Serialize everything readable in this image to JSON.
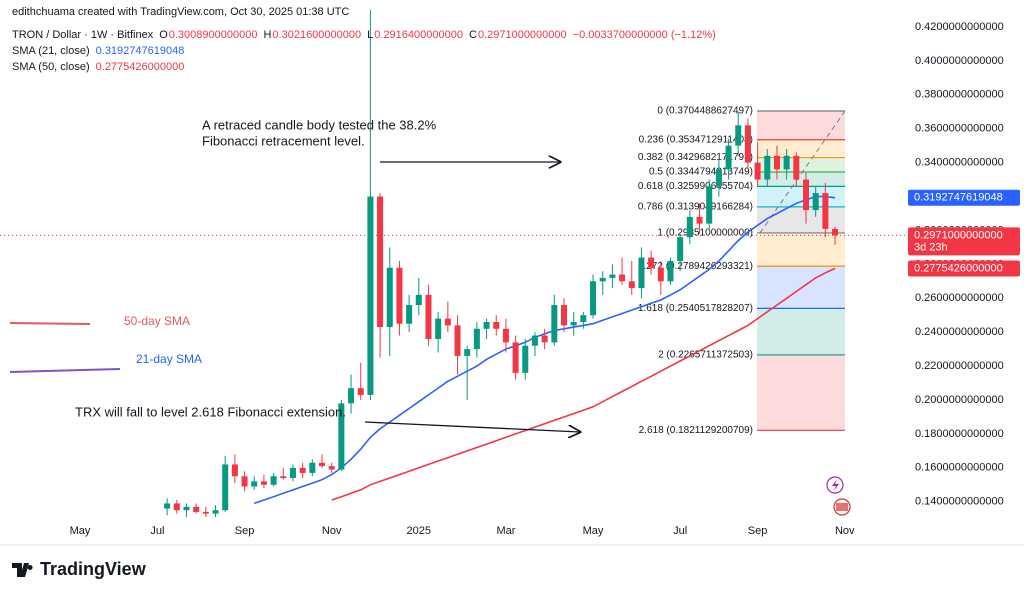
{
  "chart_data": {
    "type": "candlestick",
    "subtitle": "edithchuama created with TradingView.com, Oct 30, 2025 01:38 UTC",
    "title": "TRON / Dollar · 1W · Bitfinex",
    "ohlc_labels": [
      {
        "key": "O",
        "text": "0.3008900000000"
      },
      {
        "key": "H",
        "text": "0.3021600000000"
      },
      {
        "key": "L",
        "text": "0.2916400000000"
      },
      {
        "key": "C",
        "text": "0.2971000000000"
      }
    ],
    "change": "−0.0033700000000 (−1.12%)",
    "last_price": "0.2971000000000",
    "countdown": "3d 23h",
    "brand": "TradingView",
    "up_color": "#089981",
    "down_color": "#f23645",
    "grid": false,
    "categories": [
      "May",
      null,
      null,
      null,
      null,
      null,
      null,
      null,
      "Jul",
      null,
      null,
      null,
      null,
      null,
      null,
      null,
      null,
      "Sep",
      null,
      null,
      null,
      null,
      null,
      null,
      null,
      null,
      "Nov",
      null,
      null,
      null,
      null,
      null,
      null,
      null,
      null,
      "2025",
      null,
      null,
      null,
      null,
      null,
      null,
      null,
      null,
      "Mar",
      null,
      null,
      null,
      null,
      null,
      null,
      null,
      null,
      "May",
      null,
      null,
      null,
      null,
      null,
      null,
      null,
      null,
      "Jul",
      null,
      null,
      null,
      null,
      null,
      null,
      null,
      "Sep",
      null,
      null,
      null,
      null,
      null,
      null,
      null,
      null,
      "Nov"
    ],
    "open": [
      null,
      null,
      null,
      null,
      null,
      null,
      null,
      null,
      null,
      0.136,
      0.139,
      0.135,
      0.137,
      0.134,
      0.133,
      0.135,
      0.162,
      0.155,
      0.149,
      0.152,
      0.15,
      0.155,
      0.154,
      0.16,
      0.157,
      0.163,
      0.161,
      0.159,
      0.198,
      0.207,
      0.203,
      0.32,
      0.243,
      0.278,
      0.245,
      0.256,
      0.262,
      0.236,
      0.248,
      0.244,
      0.226,
      0.23,
      0.242,
      0.246,
      0.242,
      0.234,
      0.216,
      0.232,
      0.238,
      0.234,
      0.256,
      0.244,
      0.246,
      0.25,
      0.27,
      0.272,
      0.274,
      0.27,
      0.266,
      0.284,
      0.278,
      0.27,
      0.282,
      0.296,
      0.308,
      0.304,
      0.326,
      0.336,
      0.35,
      0.362,
      0.34,
      0.33,
      0.344,
      0.336,
      0.344,
      0.33,
      0.312,
      0.322,
      0.30089,
      null
    ],
    "high": [
      null,
      null,
      null,
      null,
      null,
      null,
      null,
      null,
      null,
      0.142,
      0.141,
      0.139,
      0.139,
      0.137,
      0.138,
      0.167,
      0.168,
      0.158,
      0.155,
      0.156,
      0.157,
      0.16,
      0.162,
      0.163,
      0.165,
      0.168,
      0.163,
      0.2,
      0.215,
      0.222,
      0.44,
      0.322,
      0.29,
      0.282,
      0.262,
      0.272,
      0.268,
      0.252,
      0.258,
      0.25,
      0.232,
      0.246,
      0.248,
      0.25,
      0.248,
      0.238,
      0.236,
      0.24,
      0.242,
      0.262,
      0.26,
      0.252,
      0.252,
      0.274,
      0.276,
      0.28,
      0.284,
      0.282,
      0.29,
      0.288,
      0.282,
      0.284,
      0.298,
      0.312,
      0.316,
      0.33,
      0.342,
      0.354,
      0.37,
      0.366,
      0.352,
      0.348,
      0.35,
      0.348,
      0.346,
      0.334,
      0.326,
      0.328,
      0.30216,
      null
    ],
    "low": [
      null,
      null,
      null,
      null,
      null,
      null,
      null,
      null,
      null,
      0.132,
      0.133,
      0.13,
      0.133,
      0.131,
      0.129,
      0.134,
      0.151,
      0.146,
      0.147,
      0.148,
      0.149,
      0.153,
      0.152,
      0.154,
      0.155,
      0.16,
      0.157,
      0.158,
      0.192,
      0.2,
      0.2,
      0.225,
      0.226,
      0.238,
      0.24,
      0.25,
      0.232,
      0.228,
      0.24,
      0.215,
      0.2,
      0.225,
      0.236,
      0.238,
      0.228,
      0.212,
      0.212,
      0.226,
      0.23,
      0.232,
      0.24,
      0.238,
      0.242,
      0.248,
      0.262,
      0.266,
      0.268,
      0.262,
      0.26,
      0.274,
      0.262,
      0.268,
      0.276,
      0.292,
      0.298,
      0.3,
      0.32,
      0.33,
      0.344,
      0.336,
      0.326,
      0.326,
      0.33,
      0.33,
      0.326,
      0.304,
      0.308,
      0.296,
      0.29164,
      null
    ],
    "close": [
      null,
      null,
      null,
      null,
      null,
      null,
      null,
      null,
      null,
      0.139,
      0.135,
      0.137,
      0.134,
      0.133,
      0.135,
      0.162,
      0.155,
      0.149,
      0.152,
      0.15,
      0.155,
      0.154,
      0.16,
      0.157,
      0.163,
      0.161,
      0.159,
      0.198,
      0.207,
      0.203,
      0.32,
      0.243,
      0.278,
      0.245,
      0.256,
      0.262,
      0.236,
      0.248,
      0.244,
      0.226,
      0.23,
      0.242,
      0.246,
      0.242,
      0.234,
      0.216,
      0.232,
      0.238,
      0.234,
      0.256,
      0.244,
      0.246,
      0.25,
      0.27,
      0.272,
      0.274,
      0.27,
      0.266,
      0.284,
      0.278,
      0.27,
      0.282,
      0.296,
      0.308,
      0.304,
      0.326,
      0.336,
      0.35,
      0.362,
      0.34,
      0.33,
      0.344,
      0.336,
      0.344,
      0.33,
      0.312,
      0.322,
      0.30089,
      0.2971,
      null
    ],
    "series": [
      {
        "name": "SMA (21, close)",
        "color": "#2962ff",
        "legend_value": "0.3192747619048",
        "values": [
          null,
          null,
          null,
          null,
          null,
          null,
          null,
          null,
          null,
          null,
          null,
          null,
          null,
          null,
          null,
          null,
          null,
          null,
          0.139,
          0.141,
          0.143,
          0.145,
          0.147,
          0.149,
          0.151,
          0.153,
          0.156,
          0.16,
          0.165,
          0.171,
          0.178,
          0.183,
          0.187,
          0.191,
          0.195,
          0.199,
          0.203,
          0.207,
          0.211,
          0.214,
          0.217,
          0.22,
          0.224,
          0.227,
          0.23,
          0.232,
          0.234,
          0.237,
          0.239,
          0.241,
          0.242,
          0.243,
          0.244,
          0.245,
          0.247,
          0.249,
          0.251,
          0.253,
          0.255,
          0.257,
          0.259,
          0.262,
          0.265,
          0.269,
          0.273,
          0.277,
          0.282,
          0.288,
          0.294,
          0.299,
          0.303,
          0.307,
          0.31,
          0.313,
          0.316,
          0.318,
          0.32,
          0.32,
          0.3192747619048,
          null
        ]
      },
      {
        "name": "SMA (50, close)",
        "color": "#f23645",
        "legend_value": "0.2775426000000",
        "values": [
          null,
          null,
          null,
          null,
          null,
          null,
          null,
          null,
          null,
          null,
          null,
          null,
          null,
          null,
          null,
          null,
          null,
          null,
          null,
          null,
          null,
          null,
          null,
          null,
          null,
          null,
          0.141,
          0.143,
          0.145,
          0.147,
          0.15,
          0.152,
          0.154,
          0.156,
          0.158,
          0.16,
          0.162,
          0.164,
          0.166,
          0.168,
          0.17,
          0.172,
          0.174,
          0.176,
          0.178,
          0.18,
          0.182,
          0.184,
          0.186,
          0.188,
          0.19,
          0.192,
          0.194,
          0.196,
          0.199,
          0.202,
          0.205,
          0.208,
          0.211,
          0.214,
          0.217,
          0.22,
          0.223,
          0.226,
          0.229,
          0.232,
          0.235,
          0.238,
          0.241,
          0.244,
          0.248,
          0.252,
          0.256,
          0.26,
          0.264,
          0.268,
          0.272,
          0.275,
          0.2775426,
          null
        ]
      }
    ],
    "ylim": [
      0.131,
      0.43
    ],
    "yticks": [
      {
        "value": 0.14,
        "label": "0.1400000000000"
      },
      {
        "value": 0.16,
        "label": "0.1600000000000"
      },
      {
        "value": 0.18,
        "label": "0.1800000000000"
      },
      {
        "value": 0.2,
        "label": "0.2000000000000"
      },
      {
        "value": 0.22,
        "label": "0.2200000000000"
      },
      {
        "value": 0.24,
        "label": "0.2400000000000"
      },
      {
        "value": 0.26,
        "label": "0.2600000000000"
      },
      {
        "value": 0.28,
        "label": "0.2800000000000"
      },
      {
        "value": 0.3,
        "label": "0.3000000000000"
      },
      {
        "value": 0.32,
        "label": "0.3200000000000"
      },
      {
        "value": 0.34,
        "label": "0.3400000000000"
      },
      {
        "value": 0.36,
        "label": "0.3600000000000"
      },
      {
        "value": 0.38,
        "label": "0.3800000000000"
      },
      {
        "value": 0.4,
        "label": "0.4000000000000"
      },
      {
        "value": 0.42,
        "label": "0.4200000000000"
      }
    ],
    "fib_levels": [
      {
        "price": 0.3704488627497,
        "label": "0 (0.3704488627497)",
        "color": "#787b86"
      },
      {
        "price": 0.3534712911408,
        "label": "0.236 (0.3534712911408)",
        "color": "#f23645"
      },
      {
        "price": 0.3429682171793,
        "label": "0.382 (0.3429682171793)",
        "color": "#ff9800"
      },
      {
        "price": 0.3344794313749,
        "label": "0.5 (0.3344794313749)",
        "color": "#4caf50"
      },
      {
        "price": 0.3259906455704,
        "label": "0.618 (0.3259906455704)",
        "color": "#089981"
      },
      {
        "price": 0.3139049166284,
        "label": "0.786 (0.3139049166284)",
        "color": "#00bcd4"
      },
      {
        "price": 0.29851,
        "label": "1 (0.2985100000000)",
        "color": "#787b86"
      },
      {
        "price": 0.2789426293321,
        "label": "1.272 (0.2789426293321)",
        "color": "#ff9800"
      },
      {
        "price": 0.2540517828207,
        "label": "1.618 (0.2540517828207)",
        "color": "#2962ff"
      },
      {
        "price": 0.2265711372503,
        "label": "2 (0.2265711372503)",
        "color": "#089981"
      },
      {
        "price": 0.1821129200709,
        "label": "2.618 (0.1821129200709)",
        "color": "#f23645"
      }
    ],
    "annotations": [
      "A retraced candle body tested the 38.2%",
      "Fibonacci retracement level.",
      "TRX will fall to level 2.618 Fibonacci extension.",
      "50-day SMA",
      "21-day SMA"
    ]
  }
}
